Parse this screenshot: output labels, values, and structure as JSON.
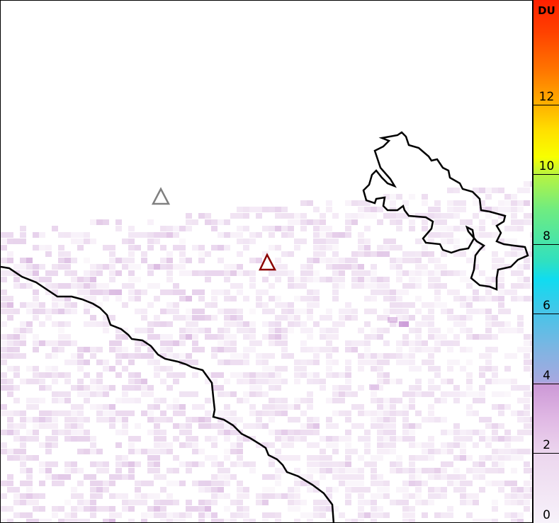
{
  "colorbar": {
    "unit": "DU",
    "ticks": [
      "0",
      "2",
      "4",
      "6",
      "8",
      "10",
      "12"
    ],
    "range": [
      0,
      15
    ]
  },
  "markers": [
    {
      "name": "volcano-marker-gray",
      "color": "#808080"
    },
    {
      "name": "volcano-marker-red",
      "color": "#8b0000"
    }
  ],
  "colors": {
    "coastline": "#000000",
    "low_value_pixels": "#e8d4ec"
  }
}
